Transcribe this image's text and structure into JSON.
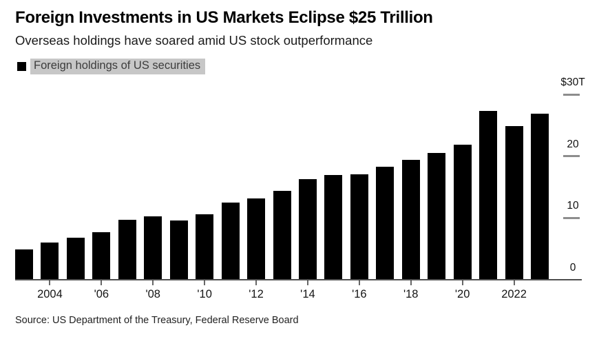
{
  "header": {
    "title": "Foreign Investments in US Markets Eclipse $25 Trillion",
    "subtitle": "Overseas holdings have soared amid US stock outperformance"
  },
  "legend": {
    "label": "Foreign holdings of US securities"
  },
  "source": "Source: US Department of the Treasury, Federal Reserve Board",
  "colors": {
    "bar": "#000000",
    "legend_swatch": "#000000",
    "legend_highlight": "#c7c7c7",
    "axis_line": "#4d4d4d",
    "x_tick": "#666666",
    "y_grid_dash": "#8d8d8d"
  },
  "chart_data": {
    "type": "bar",
    "title": "Foreign Investments in US Markets Eclipse $25 Trillion",
    "subtitle": "Overseas holdings have soared amid US stock outperformance",
    "series_name": "Foreign holdings of US securities",
    "unit": "USD trillions",
    "x": [
      2003,
      2004,
      2005,
      2006,
      2007,
      2008,
      2009,
      2010,
      2011,
      2012,
      2013,
      2014,
      2015,
      2016,
      2017,
      2018,
      2019,
      2020,
      2021,
      2022,
      2023
    ],
    "values": [
      4.9,
      6.0,
      6.8,
      7.7,
      9.7,
      10.3,
      9.6,
      10.6,
      12.5,
      13.2,
      14.4,
      16.3,
      17.0,
      17.1,
      18.3,
      19.4,
      20.5,
      21.9,
      27.3,
      24.9,
      26.9
    ],
    "ylim": [
      0,
      30
    ],
    "y_ticks": [
      {
        "value": 30,
        "label": "$30T"
      },
      {
        "value": 20,
        "label": "20"
      },
      {
        "value": 10,
        "label": "10"
      },
      {
        "value": 0,
        "label": "0"
      }
    ],
    "x_tick_labels": [
      {
        "year": 2004,
        "label": "2004"
      },
      {
        "year": 2006,
        "label": "'06"
      },
      {
        "year": 2008,
        "label": "'08"
      },
      {
        "year": 2010,
        "label": "'10"
      },
      {
        "year": 2012,
        "label": "'12"
      },
      {
        "year": 2014,
        "label": "'14"
      },
      {
        "year": 2016,
        "label": "'16"
      },
      {
        "year": 2018,
        "label": "'18"
      },
      {
        "year": 2020,
        "label": "'20"
      },
      {
        "year": 2022,
        "label": "2022"
      }
    ],
    "grid": "right-side-dashes",
    "legend_position": "top-left",
    "y_axis_side": "right"
  }
}
